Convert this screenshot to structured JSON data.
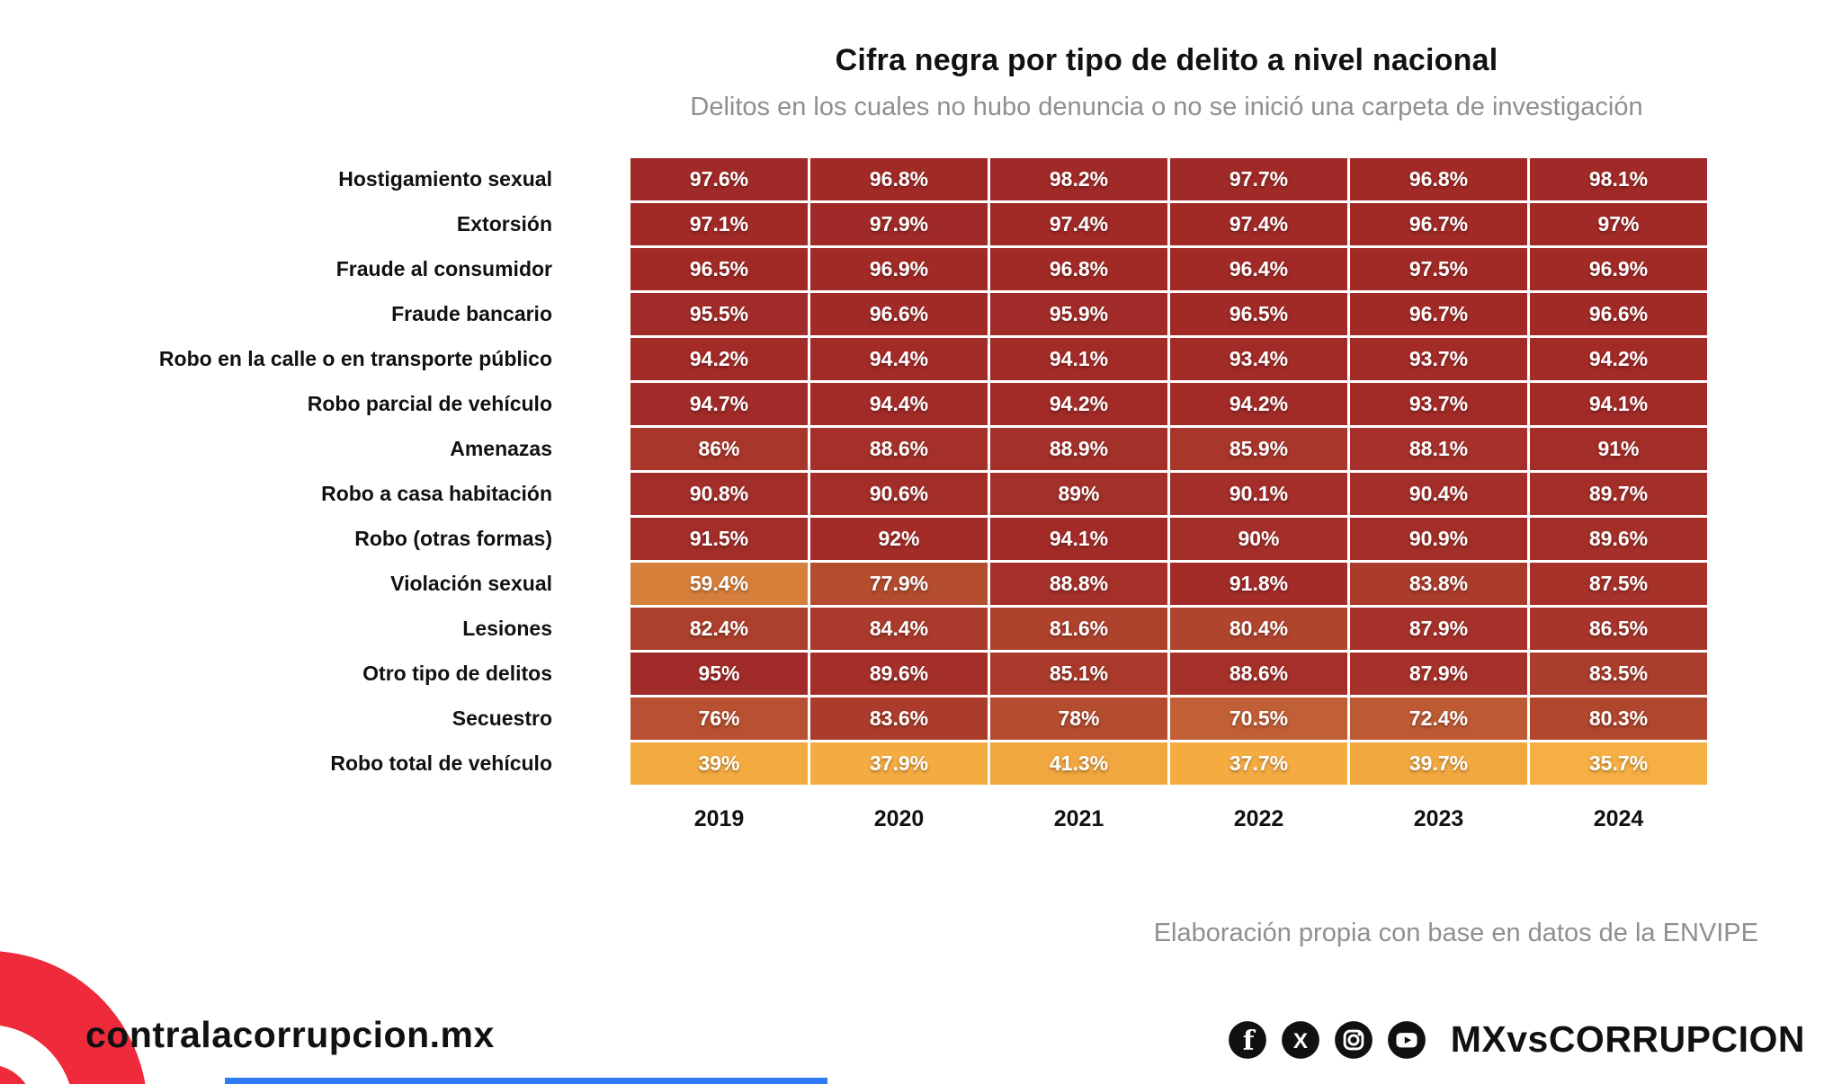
{
  "header": {
    "title": "Cifra negra por tipo de delito a nivel nacional",
    "subtitle": "Delitos en los cuales no hubo denuncia o no se inició una carpeta de investigación"
  },
  "source_note": "Elaboración propia con base en datos de la ENVIPE",
  "footer": {
    "site": "contralacorrupcion.mx",
    "handle": "MXvsCORRUPCION",
    "social_icons": [
      "facebook-icon",
      "x-icon",
      "instagram-icon",
      "youtube-icon"
    ],
    "brand_red": "#EE2A3B",
    "accent_blue": "#2F7BF5"
  },
  "chart_data": {
    "type": "heatmap",
    "title": "Cifra negra por tipo de delito a nivel nacional",
    "subtitle": "Delitos en los cuales no hubo denuncia o no se inició una carpeta de investigación",
    "value_format": "percent",
    "x": [
      "2019",
      "2020",
      "2021",
      "2022",
      "2023",
      "2024"
    ],
    "series": [
      {
        "name": "Hostigamiento sexual",
        "values": [
          97.6,
          96.8,
          98.2,
          97.7,
          96.8,
          98.1
        ]
      },
      {
        "name": "Extorsión",
        "values": [
          97.1,
          97.9,
          97.4,
          97.4,
          96.7,
          97
        ]
      },
      {
        "name": "Fraude al consumidor",
        "values": [
          96.5,
          96.9,
          96.8,
          96.4,
          97.5,
          96.9
        ]
      },
      {
        "name": "Fraude bancario",
        "values": [
          95.5,
          96.6,
          95.9,
          96.5,
          96.7,
          96.6
        ]
      },
      {
        "name": "Robo en la calle o en transporte público",
        "values": [
          94.2,
          94.4,
          94.1,
          93.4,
          93.7,
          94.2
        ]
      },
      {
        "name": "Robo parcial de vehículo",
        "values": [
          94.7,
          94.4,
          94.2,
          94.2,
          93.7,
          94.1
        ]
      },
      {
        "name": "Amenazas",
        "values": [
          86,
          88.6,
          88.9,
          85.9,
          88.1,
          91
        ]
      },
      {
        "name": "Robo a casa habitación",
        "values": [
          90.8,
          90.6,
          89,
          90.1,
          90.4,
          89.7
        ]
      },
      {
        "name": "Robo (otras formas)",
        "values": [
          91.5,
          92,
          94.1,
          90,
          90.9,
          89.6
        ]
      },
      {
        "name": "Violación sexual",
        "values": [
          59.4,
          77.9,
          88.8,
          91.8,
          83.8,
          87.5
        ]
      },
      {
        "name": "Lesiones",
        "values": [
          82.4,
          84.4,
          81.6,
          80.4,
          87.9,
          86.5
        ]
      },
      {
        "name": "Otro tipo de delitos",
        "values": [
          95,
          89.6,
          85.1,
          88.6,
          87.9,
          83.5
        ]
      },
      {
        "name": "Secuestro",
        "values": [
          76,
          83.6,
          78,
          70.5,
          72.4,
          80.3
        ]
      },
      {
        "name": "Robo total de vehículo",
        "values": [
          39,
          37.9,
          41.3,
          37.7,
          39.7,
          35.7
        ]
      }
    ],
    "color_scale": {
      "stops": [
        [
          35,
          "#F7B042"
        ],
        [
          45,
          "#EDA03E"
        ],
        [
          55,
          "#DE8A3B"
        ],
        [
          62,
          "#D2783A"
        ],
        [
          68,
          "#C66538"
        ],
        [
          73,
          "#BC5834"
        ],
        [
          78,
          "#B44C2F"
        ],
        [
          83,
          "#AC3E2C"
        ],
        [
          88,
          "#A5312A"
        ],
        [
          93,
          "#A22B28"
        ],
        [
          99,
          "#A02A27"
        ]
      ]
    },
    "legend": "none",
    "grid": "white 3px separators"
  }
}
